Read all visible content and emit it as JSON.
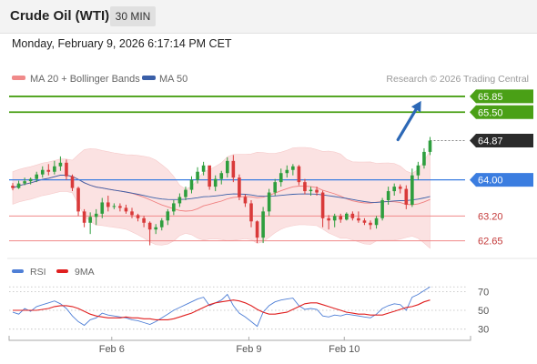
{
  "header": {
    "instrument": "Crude Oil (WTI)",
    "timeframe": "30 MIN",
    "datetime": "Monday, February 9, 2026 6:17:14 PM CET"
  },
  "legend": {
    "ma20_bb": "MA 20 + Bollinger Bands",
    "ma50": "MA 50",
    "credit": "Research © 2026 Trading Central",
    "rsi": "RSI",
    "ma9": "9MA"
  },
  "colors": {
    "bull": "#2e9e3e",
    "bear": "#d93a3a",
    "bb_band": "#fbe2e2",
    "ma20": "#f08080",
    "ma50": "#3a5fa8",
    "pivot_line": "#3b7de0",
    "resistance": "#4aa016",
    "support": "#f08a8a",
    "last_price": "#2b2b2b",
    "arrow": "#2c68b6",
    "rsi": "#4f7fd6",
    "rsi_ma": "#e02020"
  },
  "chart_data": {
    "type": "candlestick",
    "ylim": [
      62.4,
      66.05
    ],
    "levels": [
      {
        "value": 65.85,
        "label": "65.85",
        "kind": "resistance"
      },
      {
        "value": 65.5,
        "label": "65.50",
        "kind": "resistance"
      },
      {
        "value": 64.87,
        "label": "64.87",
        "kind": "last"
      },
      {
        "value": 64.0,
        "label": "64.00",
        "kind": "pivot"
      },
      {
        "value": 63.2,
        "label": "63.20",
        "kind": "support"
      },
      {
        "value": 62.65,
        "label": "62.65",
        "kind": "support"
      }
    ],
    "arrow": {
      "from_bar": 64,
      "from_price": 64.87,
      "to_bar": 68.5,
      "to_price": 65.75
    },
    "candles": [
      [
        63.87,
        63.93,
        63.77,
        63.82
      ],
      [
        63.82,
        63.98,
        63.8,
        63.92
      ],
      [
        63.92,
        64.05,
        63.88,
        63.97
      ],
      [
        63.97,
        64.05,
        63.9,
        64.02
      ],
      [
        64.02,
        64.18,
        63.95,
        64.12
      ],
      [
        64.12,
        64.3,
        64.05,
        64.22
      ],
      [
        64.22,
        64.35,
        64.1,
        64.18
      ],
      [
        64.18,
        64.42,
        64.12,
        64.3
      ],
      [
        64.3,
        64.52,
        64.2,
        64.38
      ],
      [
        64.38,
        64.45,
        64.0,
        64.08
      ],
      [
        64.08,
        64.12,
        63.75,
        63.82
      ],
      [
        63.82,
        63.85,
        63.2,
        63.3
      ],
      [
        63.3,
        63.35,
        62.95,
        63.05
      ],
      [
        63.05,
        63.28,
        62.8,
        63.18
      ],
      [
        63.18,
        63.35,
        63.0,
        63.25
      ],
      [
        63.25,
        63.6,
        63.15,
        63.5
      ],
      [
        63.5,
        63.65,
        63.3,
        63.4
      ],
      [
        63.4,
        63.48,
        63.35,
        63.42
      ],
      [
        63.42,
        63.48,
        63.3,
        63.38
      ],
      [
        63.38,
        63.45,
        63.25,
        63.3
      ],
      [
        63.3,
        63.38,
        63.15,
        63.22
      ],
      [
        63.22,
        63.25,
        63.08,
        63.15
      ],
      [
        63.15,
        63.2,
        62.95,
        63.05
      ],
      [
        63.05,
        63.08,
        62.55,
        62.9
      ],
      [
        62.9,
        63.02,
        62.8,
        62.95
      ],
      [
        62.95,
        63.15,
        62.88,
        63.1
      ],
      [
        63.1,
        63.35,
        63.0,
        63.3
      ],
      [
        63.3,
        63.55,
        63.22,
        63.48
      ],
      [
        63.48,
        63.7,
        63.4,
        63.62
      ],
      [
        63.62,
        63.85,
        63.55,
        63.78
      ],
      [
        63.78,
        64.08,
        63.7,
        64.0
      ],
      [
        64.0,
        64.28,
        63.92,
        64.18
      ],
      [
        64.18,
        64.4,
        64.1,
        64.32
      ],
      [
        64.32,
        64.3,
        63.78,
        63.85
      ],
      [
        63.85,
        64.1,
        63.75,
        64.02
      ],
      [
        64.02,
        64.2,
        63.9,
        64.15
      ],
      [
        64.15,
        64.5,
        64.05,
        64.42
      ],
      [
        64.42,
        64.55,
        63.95,
        64.05
      ],
      [
        64.05,
        64.12,
        63.55,
        63.62
      ],
      [
        63.62,
        63.68,
        63.4,
        63.48
      ],
      [
        63.48,
        63.55,
        62.95,
        63.08
      ],
      [
        63.08,
        63.1,
        62.6,
        62.72
      ],
      [
        62.72,
        63.4,
        62.6,
        63.3
      ],
      [
        63.3,
        63.8,
        63.2,
        63.72
      ],
      [
        63.72,
        64.02,
        63.65,
        63.95
      ],
      [
        63.95,
        64.25,
        63.85,
        64.15
      ],
      [
        64.15,
        64.32,
        64.05,
        64.22
      ],
      [
        64.22,
        64.35,
        64.1,
        64.3
      ],
      [
        64.3,
        64.33,
        63.88,
        63.95
      ],
      [
        63.95,
        64.02,
        63.68,
        63.75
      ],
      [
        63.75,
        63.85,
        63.65,
        63.78
      ],
      [
        63.78,
        63.85,
        63.65,
        63.72
      ],
      [
        63.72,
        63.76,
        62.95,
        63.15
      ],
      [
        63.15,
        63.22,
        62.9,
        63.1
      ],
      [
        63.1,
        63.25,
        62.95,
        63.2
      ],
      [
        63.2,
        63.25,
        63.05,
        63.12
      ],
      [
        63.12,
        63.28,
        63.1,
        63.25
      ],
      [
        63.25,
        63.3,
        63.1,
        63.15
      ],
      [
        63.15,
        63.3,
        63.05,
        63.1
      ],
      [
        63.1,
        63.15,
        63.0,
        63.05
      ],
      [
        63.05,
        63.1,
        62.9,
        63.0
      ],
      [
        63.0,
        63.2,
        62.92,
        63.15
      ],
      [
        63.15,
        63.6,
        63.1,
        63.55
      ],
      [
        63.55,
        63.85,
        63.45,
        63.75
      ],
      [
        63.75,
        63.92,
        63.65,
        63.85
      ],
      [
        63.85,
        63.9,
        63.7,
        63.8
      ],
      [
        63.8,
        63.88,
        63.35,
        63.45
      ],
      [
        63.45,
        64.25,
        63.4,
        64.1
      ],
      [
        64.1,
        64.4,
        64.0,
        64.32
      ],
      [
        64.32,
        64.7,
        64.25,
        64.62
      ],
      [
        64.62,
        64.95,
        64.55,
        64.87
      ]
    ],
    "rsi": {
      "title": "RSI",
      "ylim": [
        20,
        82
      ],
      "ticks": [
        70,
        50,
        30
      ],
      "overbought": 75,
      "rsi": [
        48,
        46,
        52,
        49,
        54,
        56,
        58,
        60,
        57,
        52,
        44,
        38,
        34,
        40,
        42,
        47,
        45,
        44,
        43,
        42,
        40,
        39,
        37,
        35,
        38,
        42,
        46,
        50,
        53,
        56,
        59,
        62,
        64,
        55,
        58,
        61,
        67,
        55,
        47,
        43,
        38,
        33,
        48,
        55,
        59,
        61,
        62,
        63,
        55,
        51,
        52,
        51,
        44,
        43,
        45,
        44,
        46,
        45,
        44,
        43,
        42,
        46,
        52,
        55,
        57,
        56,
        50,
        64,
        67,
        71,
        75
      ],
      "ma": [
        50,
        50,
        50,
        50,
        50,
        51,
        52,
        54,
        55,
        55,
        54,
        52,
        49,
        46,
        44,
        43,
        42,
        42,
        42,
        43,
        42,
        42,
        41,
        41,
        40,
        40,
        40,
        41,
        43,
        45,
        47,
        50,
        53,
        56,
        58,
        59,
        60,
        61,
        60,
        58,
        55,
        51,
        48,
        46,
        46,
        47,
        48,
        51,
        54,
        57,
        58,
        58,
        56,
        54,
        52,
        50,
        48,
        47,
        46,
        46,
        45,
        45,
        45,
        47,
        49,
        51,
        53,
        54,
        56,
        59,
        61
      ]
    },
    "xlabels": [
      {
        "bar": 16,
        "label": "Feb 6"
      },
      {
        "bar": 39,
        "label": "Feb 9"
      },
      {
        "bar": 55,
        "label": "Feb 10"
      }
    ]
  }
}
